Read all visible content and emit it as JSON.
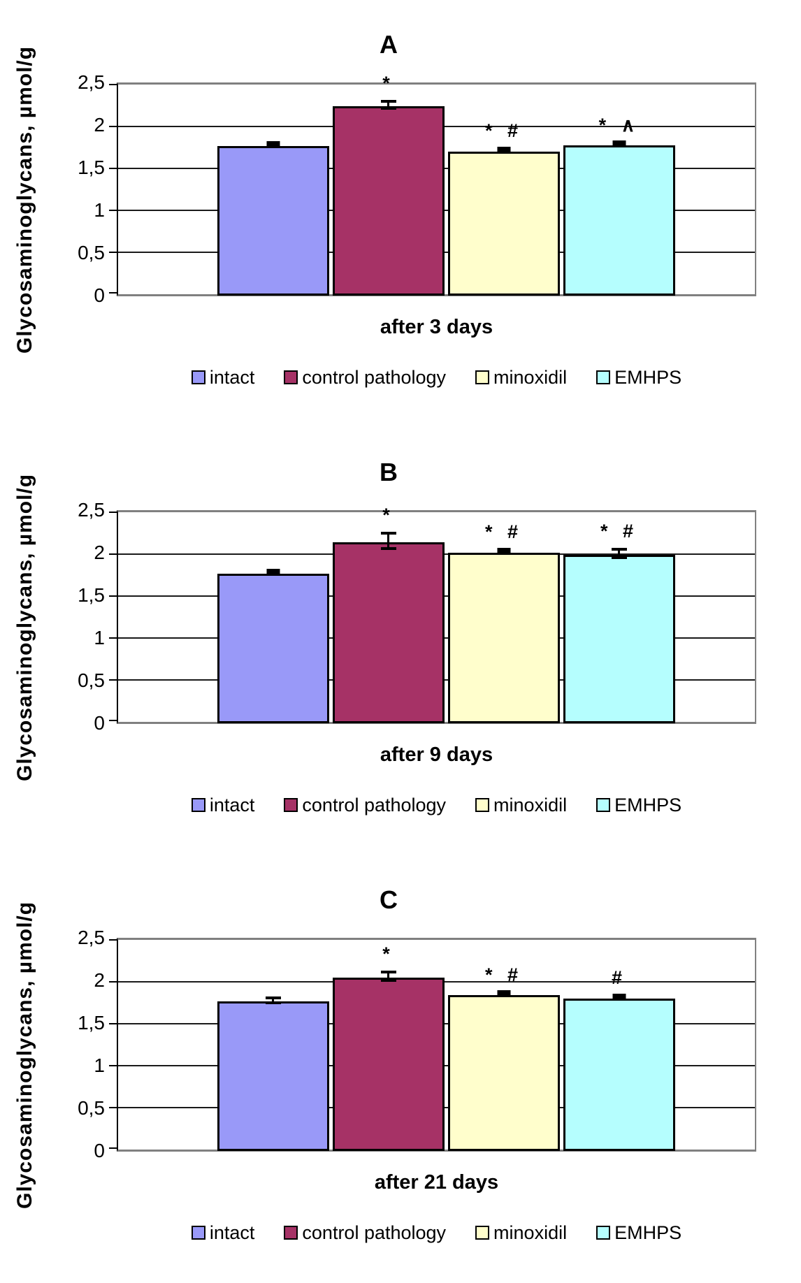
{
  "figure": {
    "y_axis_label": "Glycosaminoglycans, µmol/g",
    "y_tick_labels": [
      "2,5",
      "2",
      "1,5",
      "1",
      "0,5",
      "0"
    ],
    "decimal_separator": ",",
    "panel_titles": [
      "A",
      "B",
      "C"
    ]
  },
  "series": [
    {
      "label": "intact",
      "color": "#9999F8"
    },
    {
      "label": "control pathology",
      "color": "#A63266"
    },
    {
      "label": "minoxidil",
      "color": "#FFFECC"
    },
    {
      "label": "EMHPS",
      "color": "#B5FEFE"
    }
  ],
  "colors": {
    "plot_border": "#808080",
    "gridline": "#1a1a1a",
    "bar_border": "#000000",
    "error_bar": "#000000"
  },
  "chart_data": [
    {
      "type": "bar",
      "title": "A",
      "xlabel": "after 3 days",
      "ylabel": "Glycosaminoglycans, µmol/g",
      "ylim": [
        0,
        2.5
      ],
      "ytick_step": 0.5,
      "grid": true,
      "legend_position": "bottom",
      "categories": [
        "intact",
        "control pathology",
        "minoxidil",
        "EMHPS"
      ],
      "values": [
        1.78,
        2.26,
        1.72,
        1.79
      ],
      "errors": [
        0.02,
        0.04,
        0.01,
        0.01
      ],
      "annotations": [
        "",
        "*",
        "* #",
        "* ∧"
      ]
    },
    {
      "type": "bar",
      "title": "B",
      "xlabel": "after 9 days",
      "ylabel": "Glycosaminoglycans, µmol/g",
      "ylim": [
        0,
        2.5
      ],
      "ytick_step": 0.5,
      "grid": true,
      "legend_position": "bottom",
      "categories": [
        "intact",
        "control pathology",
        "minoxidil",
        "EMHPS"
      ],
      "values": [
        1.78,
        2.16,
        2.03,
        2.01
      ],
      "errors": [
        0.02,
        0.09,
        0.02,
        0.05
      ],
      "annotations": [
        "",
        "*",
        "* #",
        "* #"
      ]
    },
    {
      "type": "bar",
      "title": "C",
      "xlabel": "after 21 days",
      "ylabel": "Glycosaminoglycans, µmol/g",
      "ylim": [
        0,
        2.5
      ],
      "ytick_step": 0.5,
      "grid": true,
      "legend_position": "bottom",
      "categories": [
        "intact",
        "control pathology",
        "minoxidil",
        "EMHPS"
      ],
      "values": [
        1.78,
        2.07,
        1.86,
        1.82
      ],
      "errors": [
        0.03,
        0.05,
        0.01,
        0.01
      ],
      "annotations": [
        "",
        "*",
        "* #",
        "#"
      ]
    }
  ]
}
